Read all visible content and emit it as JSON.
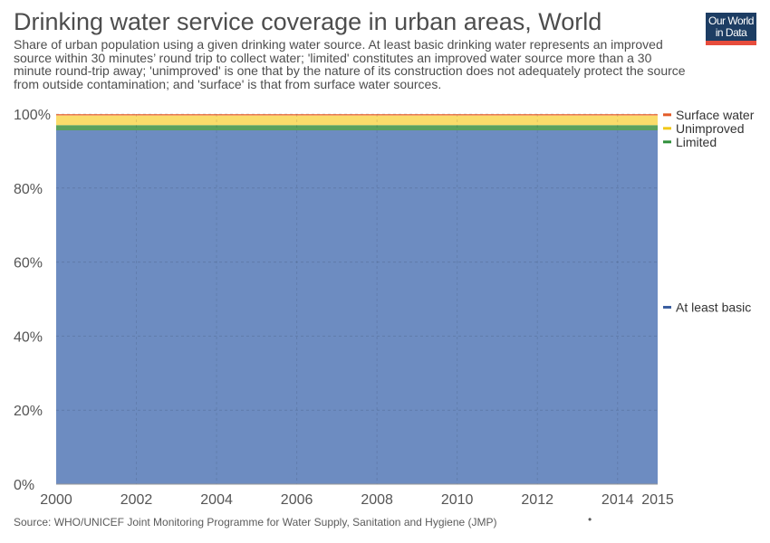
{
  "header": {
    "title": "Drinking water service coverage in urban areas, World",
    "subtitle": "Share of urban population using a given drinking water source. At least basic drinking water represents an improved source within 30 minutes’ round trip to collect water; 'limited' constitutes an improved water source more than a 30 minute round-trip away; 'unimproved' is one that by the nature of its construction does not adequately protect the source from outside contamination; and 'surface' is that from surface water sources."
  },
  "logo": {
    "line1": "Our World",
    "line2": "in Data"
  },
  "footer": {
    "source": "Source: WHO/UNICEF Joint Monitoring Programme for Water Supply, Sanitation and Hygiene (JMP)",
    "dot": "•"
  },
  "chart_data": {
    "type": "area",
    "stacked": true,
    "x": [
      2000,
      2015
    ],
    "xticks": [
      "2000",
      "2002",
      "2004",
      "2006",
      "2008",
      "2010",
      "2012",
      "2014",
      "2015"
    ],
    "yticks": [
      "0%",
      "20%",
      "40%",
      "60%",
      "80%",
      "100%"
    ],
    "ylim": [
      0,
      100
    ],
    "grid": true,
    "legend_position": "right",
    "series": [
      {
        "name": "At least basic",
        "color": "#6d8cc1",
        "legend_color": "#3c5fa0",
        "values": [
          95.6,
          95.6
        ]
      },
      {
        "name": "Limited",
        "color": "#5ba25e",
        "legend_color": "#2f8f3a",
        "values": [
          1.4,
          1.4
        ]
      },
      {
        "name": "Unimproved",
        "color": "#fadc6b",
        "legend_color": "#f2c818",
        "values": [
          2.6,
          2.6
        ]
      },
      {
        "name": "Surface water",
        "color": "#ee8054",
        "legend_color": "#e35b28",
        "values": [
          0.4,
          0.4
        ]
      }
    ]
  }
}
